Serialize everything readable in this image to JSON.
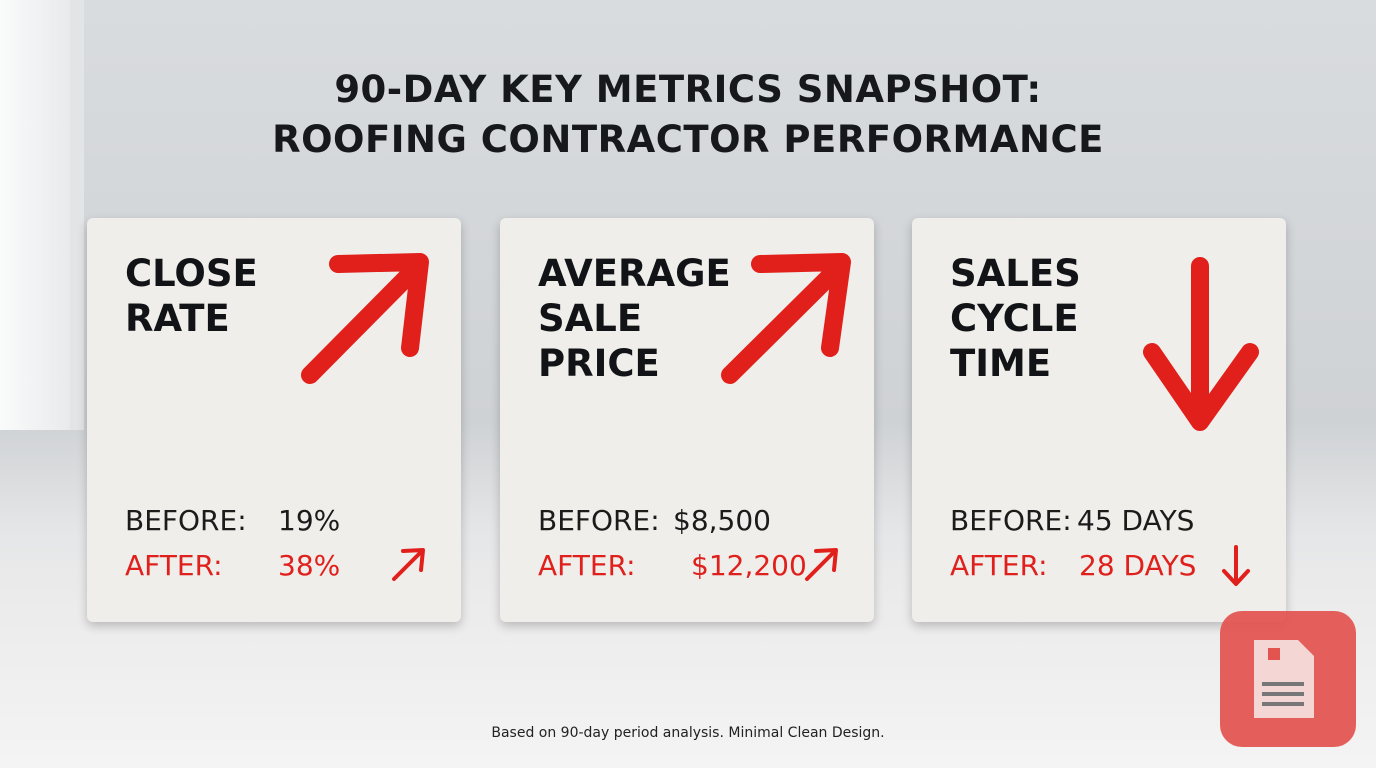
{
  "header": {
    "title": [
      "90-DAY KEY METRICS SNAPSHOT:",
      "ROOFING CONTRACTOR PERFORMANCE"
    ]
  },
  "cards": [
    {
      "title": [
        "CLOSE",
        "RATE"
      ],
      "before_label": "BEFORE:",
      "before_value": "19%",
      "after_label": "AFTER:",
      "after_value": "38%"
    },
    {
      "title": [
        "AVERAGE",
        "SALE",
        "PRICE"
      ],
      "before_label": "BEFORE:",
      "before_value": "$8,500",
      "after_label": "AFTER:",
      "after_value": "$12,200"
    },
    {
      "title": [
        "SALES",
        "CYCLE",
        "TIME"
      ],
      "before_label": "BEFORE:",
      "before_value": "45 DAYS",
      "after_label": "AFTER:",
      "after_value": "28 DAYS"
    }
  ],
  "footer": "Based on 90-day period analysis. Minimal Clean Design."
}
